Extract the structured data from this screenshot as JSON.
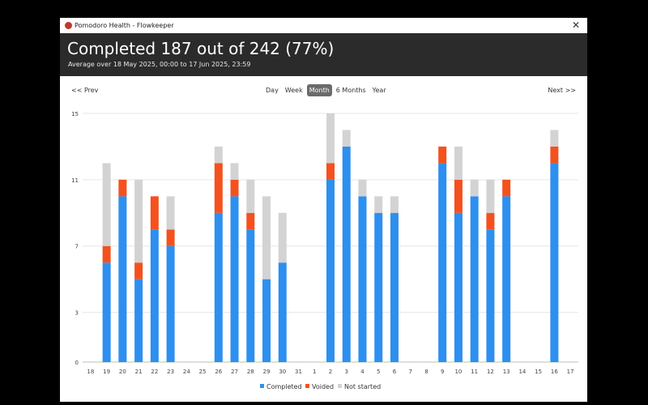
{
  "window": {
    "title": "Pomodoro Health - Flowkeeper",
    "close_icon": "close-icon",
    "app_icon": "tomato-icon"
  },
  "header": {
    "headline": "Completed 187 out of 242 (77%)",
    "subline": "Average over 18 May 2025, 00:00 to 17 Jun 2025, 23:59"
  },
  "nav": {
    "prev": "<< Prev",
    "next": "Next >>",
    "tabs": [
      {
        "label": "Day"
      },
      {
        "label": "Week"
      },
      {
        "label": "Month",
        "active": true
      },
      {
        "label": "6 Months"
      },
      {
        "label": "Year"
      }
    ]
  },
  "chart_data": {
    "type": "bar",
    "stacked": true,
    "categories": [
      "18",
      "19",
      "20",
      "21",
      "22",
      "23",
      "24",
      "25",
      "26",
      "27",
      "28",
      "29",
      "30",
      "31",
      "1",
      "2",
      "3",
      "4",
      "5",
      "6",
      "7",
      "8",
      "9",
      "10",
      "11",
      "12",
      "13",
      "14",
      "15",
      "16",
      "17"
    ],
    "series": [
      {
        "name": "Completed",
        "color": "#2d8ff0",
        "values": [
          0,
          6,
          10,
          5,
          8,
          7,
          0,
          0,
          9,
          10,
          8,
          5,
          6,
          0,
          0,
          11,
          13,
          10,
          9,
          9,
          0,
          0,
          12,
          9,
          10,
          8,
          10,
          0,
          0,
          12,
          0
        ]
      },
      {
        "name": "Voided",
        "color": "#f4511e",
        "values": [
          0,
          1,
          1,
          1,
          2,
          1,
          0,
          0,
          3,
          1,
          1,
          0,
          0,
          0,
          0,
          1,
          0,
          0,
          0,
          0,
          0,
          0,
          1,
          2,
          0,
          1,
          1,
          0,
          0,
          1,
          0
        ]
      },
      {
        "name": "Not started",
        "color": "#d3d3d3",
        "values": [
          0,
          5,
          0,
          5,
          0,
          2,
          0,
          0,
          1,
          1,
          2,
          5,
          3,
          0,
          0,
          3,
          1,
          1,
          1,
          1,
          0,
          0,
          0,
          2,
          1,
          2,
          0,
          0,
          0,
          1,
          0
        ]
      }
    ],
    "yticks": [
      0,
      3,
      7,
      11,
      15
    ],
    "ylim": [
      0,
      15
    ],
    "grid": true,
    "legend": {
      "position": "bottom",
      "entries": [
        "Completed",
        "Voided",
        "Not started"
      ]
    }
  }
}
